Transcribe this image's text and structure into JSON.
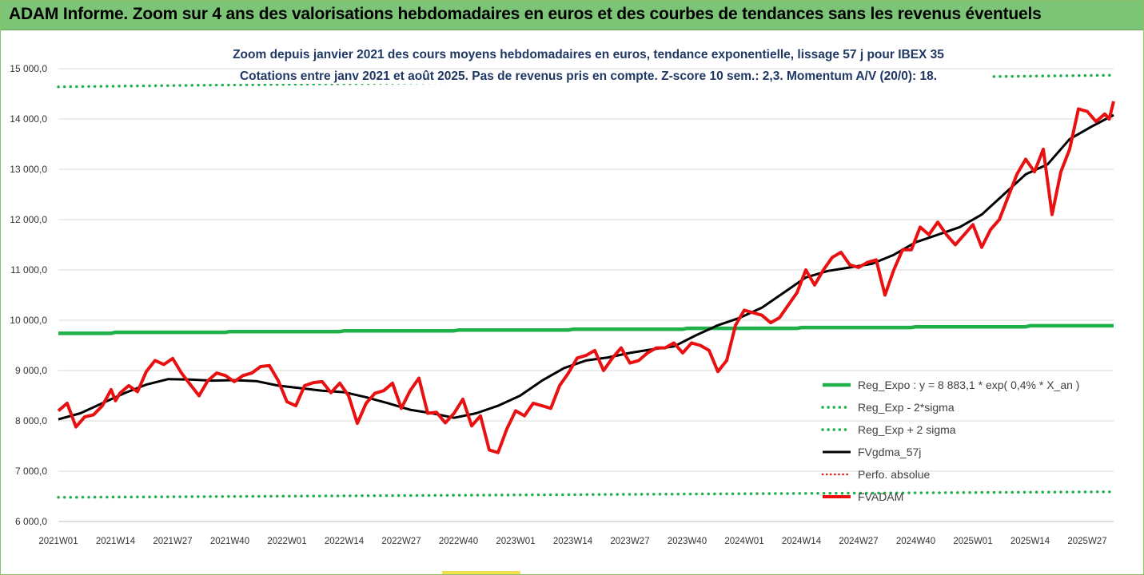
{
  "banner": {
    "title": "ADAM Informe. Zoom sur 4 ans des valorisations hebdomadaires en euros et des courbes de tendances sans les revenus éventuels"
  },
  "colors": {
    "banner_bg": "#7cc576",
    "reg_expo": "#1fb04a",
    "sigma": "#1fb04a",
    "fvgdma": "#000000",
    "perfo": "#e01010",
    "fvadam": "#e81010",
    "subtitle": "#1f3864"
  },
  "chart_data": {
    "type": "line",
    "title": "Zoom depuis janvier 2021 des cours moyens hebdomadaires en euros, tendance exponentielle, lissage 57 j pour IBEX 35",
    "subtitle": "Cotations entre janv 2021 et août 2025. Pas de revenus pris en compte. Z-score 10 sem.: 2,3. Momentum A/V (20/0): 18.",
    "xlabel": "",
    "ylabel": "",
    "ylim": [
      6000,
      15000
    ],
    "y_ticks": [
      6000,
      7000,
      8000,
      9000,
      10000,
      11000,
      12000,
      13000,
      14000,
      15000
    ],
    "y_tick_labels": [
      "6 000,0",
      "7 000,0",
      "8 000,0",
      "9 000,0",
      "10 000,0",
      "11 000,0",
      "12 000,0",
      "13 000,0",
      "14 000,0",
      "15 000,0"
    ],
    "x_tick_labels": [
      "2021W01",
      "2021W14",
      "2021W27",
      "2021W40",
      "2022W01",
      "2022W14",
      "2022W27",
      "2022W40",
      "2023W01",
      "2023W14",
      "2023W27",
      "2023W40",
      "2024W01",
      "2024W14",
      "2024W27",
      "2024W40",
      "2025W01",
      "2025W14",
      "2025W27"
    ],
    "x_tick_index": [
      0,
      13,
      26,
      39,
      52,
      65,
      78,
      91,
      104,
      117,
      130,
      143,
      156,
      169,
      182,
      195,
      208,
      221,
      234
    ],
    "grid": "horizontal",
    "legend_position": "bottom-right",
    "legend": [
      "Reg_Expo : y = 8 883,1 * exp( 0,4% *  X_an )",
      "Reg_Exp - 2*sigma",
      "Reg_Exp + 2 sigma",
      "FVgdma_57j",
      "Perfo. absolue",
      "FVADAM"
    ],
    "series": [
      {
        "name": "Reg_Expo : y = 8 883,1 * exp( 0,4% *  X_an )",
        "style": "solid-thick",
        "points": [
          [
            0,
            9740
          ],
          [
            12,
            9740
          ],
          [
            13,
            9760
          ],
          [
            38,
            9760
          ],
          [
            39,
            9775
          ],
          [
            64,
            9775
          ],
          [
            65,
            9790
          ],
          [
            90,
            9790
          ],
          [
            91,
            9805
          ],
          [
            116,
            9805
          ],
          [
            117,
            9820
          ],
          [
            142,
            9820
          ],
          [
            143,
            9840
          ],
          [
            168,
            9840
          ],
          [
            169,
            9855
          ],
          [
            194,
            9855
          ],
          [
            195,
            9870
          ],
          [
            220,
            9870
          ],
          [
            221,
            9890
          ],
          [
            240,
            9890
          ]
        ]
      },
      {
        "name": "Reg_Exp - 2*sigma",
        "style": "dotted",
        "points": [
          [
            0,
            6480
          ],
          [
            240,
            6590
          ]
        ]
      },
      {
        "name": "Reg_Exp + 2 sigma",
        "style": "dotted",
        "points": [
          [
            0,
            14640
          ],
          [
            240,
            14870
          ]
        ]
      },
      {
        "name": "FVgdma_57j",
        "style": "solid",
        "points": [
          [
            0,
            8030
          ],
          [
            5,
            8150
          ],
          [
            10,
            8350
          ],
          [
            15,
            8550
          ],
          [
            20,
            8720
          ],
          [
            25,
            8830
          ],
          [
            30,
            8820
          ],
          [
            35,
            8800
          ],
          [
            40,
            8810
          ],
          [
            45,
            8790
          ],
          [
            50,
            8700
          ],
          [
            55,
            8650
          ],
          [
            60,
            8600
          ],
          [
            65,
            8570
          ],
          [
            70,
            8470
          ],
          [
            75,
            8350
          ],
          [
            80,
            8220
          ],
          [
            85,
            8150
          ],
          [
            90,
            8060
          ],
          [
            95,
            8150
          ],
          [
            100,
            8300
          ],
          [
            105,
            8500
          ],
          [
            110,
            8800
          ],
          [
            115,
            9050
          ],
          [
            120,
            9200
          ],
          [
            125,
            9260
          ],
          [
            130,
            9350
          ],
          [
            135,
            9420
          ],
          [
            140,
            9480
          ],
          [
            145,
            9700
          ],
          [
            150,
            9900
          ],
          [
            155,
            10050
          ],
          [
            160,
            10250
          ],
          [
            165,
            10550
          ],
          [
            170,
            10850
          ],
          [
            175,
            10980
          ],
          [
            180,
            11050
          ],
          [
            185,
            11120
          ],
          [
            190,
            11300
          ],
          [
            195,
            11550
          ],
          [
            200,
            11700
          ],
          [
            205,
            11850
          ],
          [
            210,
            12100
          ],
          [
            215,
            12500
          ],
          [
            220,
            12900
          ],
          [
            225,
            13100
          ],
          [
            230,
            13600
          ],
          [
            235,
            13850
          ],
          [
            240,
            14080
          ]
        ]
      },
      {
        "name": "FVADAM",
        "style": "solid-thick",
        "points": [
          [
            0,
            8200
          ],
          [
            2,
            8350
          ],
          [
            4,
            7880
          ],
          [
            6,
            8080
          ],
          [
            8,
            8120
          ],
          [
            10,
            8300
          ],
          [
            12,
            8620
          ],
          [
            13,
            8400
          ],
          [
            14,
            8550
          ],
          [
            16,
            8700
          ],
          [
            18,
            8580
          ],
          [
            20,
            8980
          ],
          [
            22,
            9200
          ],
          [
            24,
            9120
          ],
          [
            26,
            9240
          ],
          [
            28,
            8950
          ],
          [
            30,
            8720
          ],
          [
            32,
            8500
          ],
          [
            34,
            8800
          ],
          [
            36,
            8950
          ],
          [
            38,
            8900
          ],
          [
            40,
            8780
          ],
          [
            42,
            8900
          ],
          [
            44,
            8950
          ],
          [
            46,
            9080
          ],
          [
            48,
            9100
          ],
          [
            50,
            8800
          ],
          [
            52,
            8380
          ],
          [
            54,
            8300
          ],
          [
            56,
            8700
          ],
          [
            58,
            8760
          ],
          [
            60,
            8780
          ],
          [
            62,
            8560
          ],
          [
            64,
            8750
          ],
          [
            66,
            8500
          ],
          [
            68,
            7950
          ],
          [
            70,
            8350
          ],
          [
            72,
            8550
          ],
          [
            74,
            8600
          ],
          [
            76,
            8750
          ],
          [
            78,
            8250
          ],
          [
            80,
            8600
          ],
          [
            82,
            8850
          ],
          [
            84,
            8150
          ],
          [
            86,
            8170
          ],
          [
            88,
            7960
          ],
          [
            90,
            8150
          ],
          [
            92,
            8430
          ],
          [
            94,
            7900
          ],
          [
            96,
            8100
          ],
          [
            98,
            7420
          ],
          [
            100,
            7370
          ],
          [
            102,
            7840
          ],
          [
            104,
            8200
          ],
          [
            106,
            8100
          ],
          [
            108,
            8350
          ],
          [
            110,
            8300
          ],
          [
            112,
            8250
          ],
          [
            114,
            8700
          ],
          [
            116,
            8950
          ],
          [
            118,
            9250
          ],
          [
            120,
            9300
          ],
          [
            122,
            9400
          ],
          [
            124,
            9000
          ],
          [
            126,
            9250
          ],
          [
            128,
            9450
          ],
          [
            130,
            9150
          ],
          [
            132,
            9200
          ],
          [
            134,
            9350
          ],
          [
            136,
            9450
          ],
          [
            138,
            9450
          ],
          [
            140,
            9550
          ],
          [
            142,
            9350
          ],
          [
            144,
            9550
          ],
          [
            146,
            9500
          ],
          [
            148,
            9400
          ],
          [
            150,
            8980
          ],
          [
            152,
            9200
          ],
          [
            154,
            9900
          ],
          [
            156,
            10200
          ],
          [
            158,
            10150
          ],
          [
            160,
            10100
          ],
          [
            162,
            9950
          ],
          [
            164,
            10050
          ],
          [
            166,
            10300
          ],
          [
            168,
            10550
          ],
          [
            170,
            11000
          ],
          [
            172,
            10700
          ],
          [
            174,
            11000
          ],
          [
            176,
            11250
          ],
          [
            178,
            11350
          ],
          [
            180,
            11100
          ],
          [
            182,
            11050
          ],
          [
            184,
            11150
          ],
          [
            186,
            11200
          ],
          [
            188,
            10500
          ],
          [
            190,
            11000
          ],
          [
            192,
            11400
          ],
          [
            194,
            11400
          ],
          [
            196,
            11850
          ],
          [
            198,
            11700
          ],
          [
            200,
            11950
          ],
          [
            202,
            11700
          ],
          [
            204,
            11500
          ],
          [
            206,
            11700
          ],
          [
            208,
            11900
          ],
          [
            210,
            11450
          ],
          [
            212,
            11800
          ],
          [
            214,
            12000
          ],
          [
            216,
            12450
          ],
          [
            218,
            12900
          ],
          [
            220,
            13200
          ],
          [
            222,
            12950
          ],
          [
            224,
            13400
          ],
          [
            226,
            12100
          ],
          [
            228,
            12950
          ],
          [
            230,
            13400
          ],
          [
            232,
            14200
          ],
          [
            234,
            14150
          ],
          [
            236,
            13950
          ],
          [
            238,
            14100
          ],
          [
            239,
            14000
          ],
          [
            240,
            14350
          ]
        ]
      }
    ]
  }
}
